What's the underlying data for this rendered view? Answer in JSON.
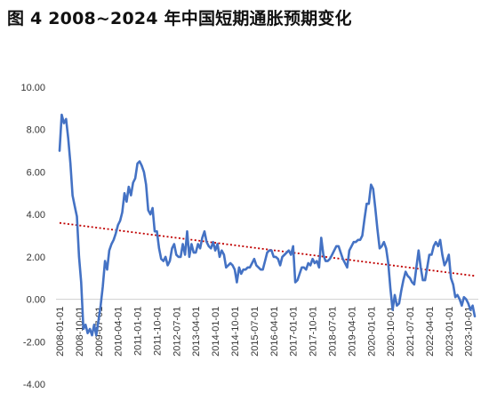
{
  "chart_data": {
    "type": "line",
    "title": "图 4  2008~2024 年中国短期通胀预期变化",
    "xlabel": "",
    "ylabel": "",
    "ylim": [
      -4,
      10
    ],
    "yticks": [
      "10.00",
      "8.00",
      "6.00",
      "4.00",
      "2.00",
      "0.00",
      "-2.00",
      "-4.00"
    ],
    "xticks": [
      "2008-01-01",
      "2008-10-01",
      "2009-07-01",
      "2010-04-01",
      "2011-01-01",
      "2011-10-01",
      "2012-07-01",
      "2013-04-01",
      "2014-01-01",
      "2014-10-01",
      "2015-07-01",
      "2016-04-01",
      "2017-01-01",
      "2017-10-01",
      "2018-07-01",
      "2019-04-01",
      "2020-01-01",
      "2020-10-01",
      "2021-07-01",
      "2022-04-01",
      "2023-01-01",
      "2023-10-01"
    ],
    "grid": false,
    "legend": "none",
    "series": [
      {
        "color": "#4472C4",
        "points": [
          [
            "2008-01",
            7.0
          ],
          [
            "2008-02",
            8.7
          ],
          [
            "2008-03",
            8.3
          ],
          [
            "2008-04",
            8.5
          ],
          [
            "2008-05",
            7.6
          ],
          [
            "2008-06",
            6.4
          ],
          [
            "2008-07",
            4.9
          ],
          [
            "2008-08",
            4.4
          ],
          [
            "2008-09",
            3.9
          ],
          [
            "2008-10",
            2.0
          ],
          [
            "2008-11",
            0.8
          ],
          [
            "2008-12",
            -1.4
          ],
          [
            "2009-01",
            -1.2
          ],
          [
            "2009-02",
            -1.6
          ],
          [
            "2009-03",
            -1.4
          ],
          [
            "2009-04",
            -1.7
          ],
          [
            "2009-05",
            -1.2
          ],
          [
            "2009-06",
            -1.7
          ],
          [
            "2009-07",
            -1.0
          ],
          [
            "2009-08",
            -0.3
          ],
          [
            "2009-09",
            0.6
          ],
          [
            "2009-10",
            1.8
          ],
          [
            "2009-11",
            1.4
          ],
          [
            "2009-12",
            2.3
          ],
          [
            "2010-01",
            2.6
          ],
          [
            "2010-02",
            2.8
          ],
          [
            "2010-03",
            3.1
          ],
          [
            "2010-04",
            3.5
          ],
          [
            "2010-05",
            3.7
          ],
          [
            "2010-06",
            4.1
          ],
          [
            "2010-07",
            5.0
          ],
          [
            "2010-08",
            4.6
          ],
          [
            "2010-09",
            5.3
          ],
          [
            "2010-10",
            4.9
          ],
          [
            "2010-11",
            5.5
          ],
          [
            "2010-12",
            5.7
          ],
          [
            "2011-01",
            6.4
          ],
          [
            "2011-02",
            6.5
          ],
          [
            "2011-03",
            6.3
          ],
          [
            "2011-04",
            6.0
          ],
          [
            "2011-05",
            5.4
          ],
          [
            "2011-06",
            4.2
          ],
          [
            "2011-07",
            4.0
          ],
          [
            "2011-08",
            4.3
          ],
          [
            "2011-09",
            3.2
          ],
          [
            "2011-10",
            3.2
          ],
          [
            "2011-11",
            2.4
          ],
          [
            "2011-12",
            1.9
          ],
          [
            "2012-01",
            1.8
          ],
          [
            "2012-02",
            2.0
          ],
          [
            "2012-03",
            1.6
          ],
          [
            "2012-04",
            1.8
          ],
          [
            "2012-05",
            2.4
          ],
          [
            "2012-06",
            2.6
          ],
          [
            "2012-07",
            2.1
          ],
          [
            "2012-08",
            2.0
          ],
          [
            "2012-09",
            2.0
          ],
          [
            "2012-10",
            2.6
          ],
          [
            "2012-11",
            2.1
          ],
          [
            "2012-12",
            3.2
          ],
          [
            "2013-01",
            2.0
          ],
          [
            "2013-02",
            2.6
          ],
          [
            "2013-03",
            2.2
          ],
          [
            "2013-04",
            2.2
          ],
          [
            "2013-05",
            2.6
          ],
          [
            "2013-06",
            2.4
          ],
          [
            "2013-07",
            2.9
          ],
          [
            "2013-08",
            3.2
          ],
          [
            "2013-09",
            2.7
          ],
          [
            "2013-10",
            2.5
          ],
          [
            "2013-11",
            2.4
          ],
          [
            "2013-12",
            2.7
          ],
          [
            "2014-01",
            2.3
          ],
          [
            "2014-02",
            2.6
          ],
          [
            "2014-03",
            2.0
          ],
          [
            "2014-04",
            2.3
          ],
          [
            "2014-05",
            2.1
          ],
          [
            "2014-06",
            1.5
          ],
          [
            "2014-07",
            1.6
          ],
          [
            "2014-08",
            1.7
          ],
          [
            "2014-09",
            1.6
          ],
          [
            "2014-10",
            1.4
          ],
          [
            "2014-11",
            0.8
          ],
          [
            "2014-12",
            1.5
          ],
          [
            "2015-01",
            1.2
          ],
          [
            "2015-02",
            1.4
          ],
          [
            "2015-03",
            1.4
          ],
          [
            "2015-04",
            1.5
          ],
          [
            "2015-05",
            1.5
          ],
          [
            "2015-06",
            1.7
          ],
          [
            "2015-07",
            1.9
          ],
          [
            "2015-08",
            1.6
          ],
          [
            "2015-09",
            1.5
          ],
          [
            "2015-10",
            1.4
          ],
          [
            "2015-11",
            1.4
          ],
          [
            "2015-12",
            1.8
          ],
          [
            "2016-01",
            2.2
          ],
          [
            "2016-02",
            2.3
          ],
          [
            "2016-03",
            2.3
          ],
          [
            "2016-04",
            2.0
          ],
          [
            "2016-05",
            2.0
          ],
          [
            "2016-06",
            1.9
          ],
          [
            "2016-07",
            1.6
          ],
          [
            "2016-08",
            2.0
          ],
          [
            "2016-09",
            2.1
          ],
          [
            "2016-10",
            2.2
          ],
          [
            "2016-11",
            2.3
          ],
          [
            "2016-12",
            2.1
          ],
          [
            "2017-01",
            2.5
          ],
          [
            "2017-02",
            0.8
          ],
          [
            "2017-03",
            0.9
          ],
          [
            "2017-04",
            1.2
          ],
          [
            "2017-05",
            1.5
          ],
          [
            "2017-06",
            1.5
          ],
          [
            "2017-07",
            1.4
          ],
          [
            "2017-08",
            1.7
          ],
          [
            "2017-09",
            1.6
          ],
          [
            "2017-10",
            1.9
          ],
          [
            "2017-11",
            1.7
          ],
          [
            "2017-12",
            1.8
          ],
          [
            "2018-01",
            1.5
          ],
          [
            "2018-02",
            2.9
          ],
          [
            "2018-03",
            2.1
          ],
          [
            "2018-04",
            1.8
          ],
          [
            "2018-05",
            1.8
          ],
          [
            "2018-06",
            1.9
          ],
          [
            "2018-07",
            2.1
          ],
          [
            "2018-08",
            2.3
          ],
          [
            "2018-09",
            2.5
          ],
          [
            "2018-10",
            2.5
          ],
          [
            "2018-11",
            2.2
          ],
          [
            "2018-12",
            1.9
          ],
          [
            "2019-01",
            1.7
          ],
          [
            "2019-02",
            1.5
          ],
          [
            "2019-03",
            2.3
          ],
          [
            "2019-04",
            2.5
          ],
          [
            "2019-05",
            2.7
          ],
          [
            "2019-06",
            2.7
          ],
          [
            "2019-07",
            2.8
          ],
          [
            "2019-08",
            2.8
          ],
          [
            "2019-09",
            3.0
          ],
          [
            "2019-10",
            3.8
          ],
          [
            "2019-11",
            4.5
          ],
          [
            "2019-12",
            4.5
          ],
          [
            "2020-01",
            5.4
          ],
          [
            "2020-02",
            5.2
          ],
          [
            "2020-03",
            4.3
          ],
          [
            "2020-04",
            3.3
          ],
          [
            "2020-05",
            2.4
          ],
          [
            "2020-06",
            2.5
          ],
          [
            "2020-07",
            2.7
          ],
          [
            "2020-08",
            2.4
          ],
          [
            "2020-09",
            1.7
          ],
          [
            "2020-10",
            0.5
          ],
          [
            "2020-11",
            -0.5
          ],
          [
            "2020-12",
            0.2
          ],
          [
            "2021-01",
            -0.3
          ],
          [
            "2021-02",
            -0.2
          ],
          [
            "2021-03",
            0.4
          ],
          [
            "2021-04",
            0.9
          ],
          [
            "2021-05",
            1.3
          ],
          [
            "2021-06",
            1.1
          ],
          [
            "2021-07",
            1.0
          ],
          [
            "2021-08",
            0.8
          ],
          [
            "2021-09",
            0.7
          ],
          [
            "2021-10",
            1.5
          ],
          [
            "2021-11",
            2.3
          ],
          [
            "2021-12",
            1.5
          ],
          [
            "2022-01",
            0.9
          ],
          [
            "2022-02",
            0.9
          ],
          [
            "2022-03",
            1.5
          ],
          [
            "2022-04",
            2.1
          ],
          [
            "2022-05",
            2.1
          ],
          [
            "2022-06",
            2.5
          ],
          [
            "2022-07",
            2.7
          ],
          [
            "2022-08",
            2.5
          ],
          [
            "2022-09",
            2.8
          ],
          [
            "2022-10",
            2.1
          ],
          [
            "2022-11",
            1.6
          ],
          [
            "2022-12",
            1.8
          ],
          [
            "2023-01",
            2.1
          ],
          [
            "2023-02",
            1.0
          ],
          [
            "2023-03",
            0.7
          ],
          [
            "2023-04",
            0.1
          ],
          [
            "2023-05",
            0.2
          ],
          [
            "2023-06",
            0.0
          ],
          [
            "2023-07",
            -0.3
          ],
          [
            "2023-08",
            0.1
          ],
          [
            "2023-09",
            0.0
          ],
          [
            "2023-10",
            -0.2
          ],
          [
            "2023-11",
            -0.5
          ],
          [
            "2023-12",
            -0.3
          ],
          [
            "2024-01",
            -0.8
          ]
        ]
      },
      {
        "color": "#C00000",
        "points": [
          [
            "2008-01",
            3.6
          ],
          [
            "2024-01",
            1.1
          ]
        ]
      }
    ]
  }
}
